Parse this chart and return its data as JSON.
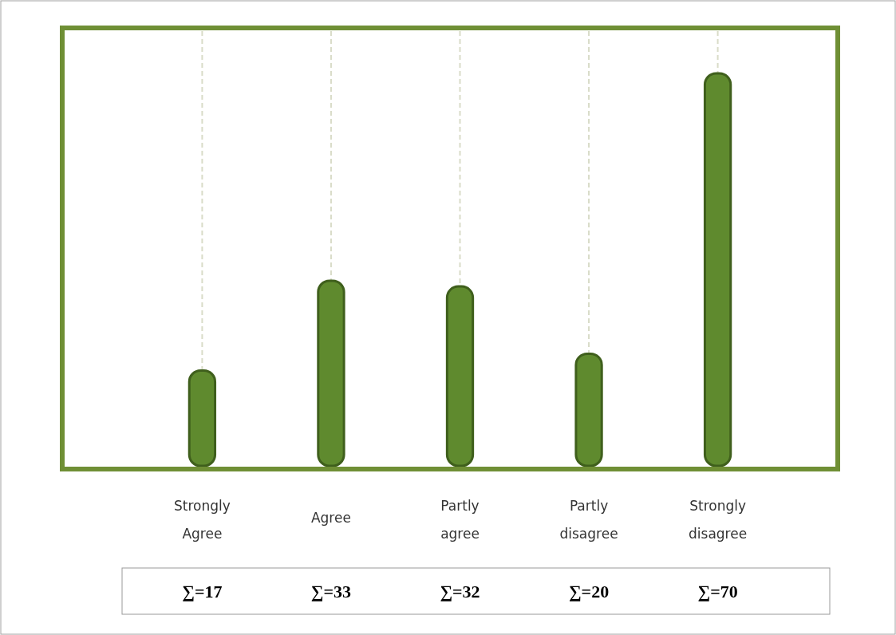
{
  "chart_data": {
    "type": "bar",
    "categories": [
      "Strongly Agree",
      "Agree",
      "Partly agree",
      "Partly disagree",
      "Strongly disagree"
    ],
    "values": [
      17,
      33,
      32,
      20,
      70
    ],
    "value_labels": [
      "∑=17",
      "∑=33",
      "∑=32",
      "∑=20",
      "∑=70"
    ],
    "color": "#5f8a2e",
    "grid": "x"
  }
}
